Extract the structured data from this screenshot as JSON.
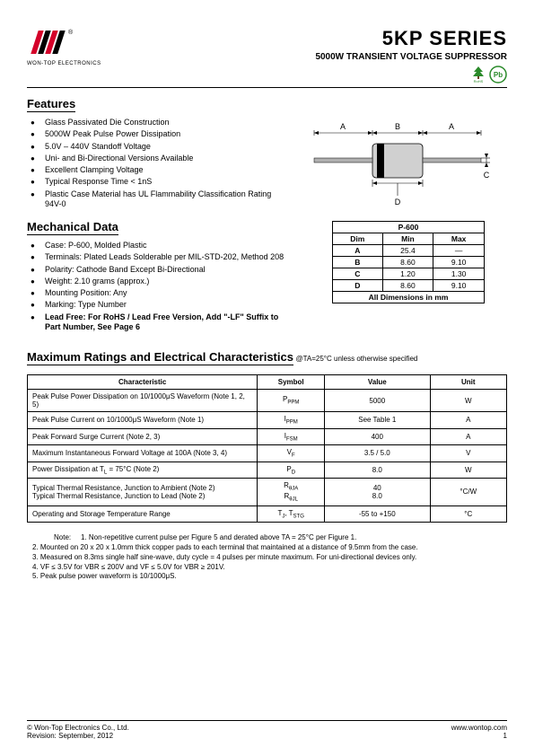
{
  "header": {
    "logo_caption": "WON-TOP ELECTRONICS",
    "series_title": "5KP SERIES",
    "subtitle": "5000W TRANSIENT VOLTAGE SUPPRESSOR",
    "rohs_label": "RoHS",
    "pb_label": "Pb"
  },
  "features": {
    "title": "Features",
    "items": [
      {
        "text": "Glass Passivated Die Construction",
        "bold": false
      },
      {
        "text": "5000W Peak Pulse Power Dissipation",
        "bold": false
      },
      {
        "text": "5.0V – 440V Standoff Voltage",
        "bold": false
      },
      {
        "text": "Uni- and Bi-Directional Versions Available",
        "bold": false
      },
      {
        "text": "Excellent Clamping Voltage",
        "bold": false
      },
      {
        "text": "Typical Response Time < 1nS",
        "bold": false
      },
      {
        "text": "Plastic Case Material has UL Flammability Classification Rating 94V-0",
        "bold": false
      }
    ]
  },
  "mechanical": {
    "title": "Mechanical Data",
    "items": [
      {
        "text": "Case: P-600, Molded Plastic",
        "bold": false
      },
      {
        "text": "Terminals: Plated Leads Solderable per MIL-STD-202, Method 208",
        "bold": false
      },
      {
        "text": "Polarity: Cathode Band Except Bi-Directional",
        "bold": false
      },
      {
        "text": "Weight: 2.10 grams (approx.)",
        "bold": false
      },
      {
        "text": "Mounting Position: Any",
        "bold": false
      },
      {
        "text": "Marking: Type Number",
        "bold": false
      },
      {
        "text": "Lead Free: For RoHS / Lead Free Version, Add \"-LF\" Suffix to Part Number, See Page 6",
        "bold": true
      }
    ]
  },
  "dim_table": {
    "package": "P-600",
    "headers": [
      "Dim",
      "Min",
      "Max"
    ],
    "rows": [
      [
        "A",
        "25.4",
        "—"
      ],
      [
        "B",
        "8.60",
        "9.10"
      ],
      [
        "C",
        "1.20",
        "1.30"
      ],
      [
        "D",
        "8.60",
        "9.10"
      ]
    ],
    "caption": "All Dimensions in mm"
  },
  "diagram": {
    "labels": {
      "A": "A",
      "B": "B",
      "C": "C",
      "D": "D"
    },
    "body_color": "#d0d0d0",
    "band_color": "#000000",
    "lead_color": "#b0b0b0"
  },
  "ratings": {
    "title": "Maximum Ratings and Electrical Characteristics",
    "condition": "@TA=25°C unless otherwise specified",
    "headers": [
      "Characteristic",
      "Symbol",
      "Value",
      "Unit"
    ],
    "rows": [
      {
        "char": "Peak Pulse Power Dissipation on 10/1000μS Waveform (Note 1, 2, 5)",
        "sym": "P<span class='sub'>PPM</span>",
        "val": "5000",
        "unit": "W"
      },
      {
        "char": "Peak Pulse Current on 10/1000μS Waveform (Note 1)",
        "sym": "I<span class='sub'>PPM</span>",
        "val": "See Table 1",
        "unit": "A"
      },
      {
        "char": "Peak Forward Surge Current (Note 2, 3)",
        "sym": "I<span class='sub'>FSM</span>",
        "val": "400",
        "unit": "A"
      },
      {
        "char": "Maximum Instantaneous Forward Voltage at 100A (Note 3, 4)",
        "sym": "V<span class='sub'>F</span>",
        "val": "3.5 / 5.0",
        "unit": "V"
      },
      {
        "char": "Power Dissipation at T<span class='sub'>L</span> = 75°C (Note 2)",
        "sym": "P<span class='sub'>D</span>",
        "val": "8.0",
        "unit": "W"
      },
      {
        "char": "Typical Thermal Resistance, Junction to Ambient (Note 2)<br>Typical Thermal Resistance, Junction to Lead (Note 2)",
        "sym": "R<span class='sub'>θJA</span><br>R<span class='sub'>θJL</span>",
        "val": "40<br>8.0",
        "unit": "°C/W"
      },
      {
        "char": "Operating and Storage Temperature Range",
        "sym": "T<span class='sub'>J</span>, T<span class='sub'>STG</span>",
        "val": "-55 to +150",
        "unit": "°C"
      }
    ]
  },
  "notes": {
    "label": "Note:",
    "items": [
      "1. Non-repetitive current pulse per Figure 5 and derated above TA = 25°C per Figure 1.",
      "2. Mounted on 20 x 20 x 1.0mm thick copper pads to each terminal that maintained at a distance of 9.5mm from the case.",
      "3. Measured on 8.3ms single half sine-wave, duty cycle = 4 pulses per minute maximum. For uni-directional devices only.",
      "4. VF ≤ 3.5V for VBR ≤ 200V and VF ≤ 5.0V for VBR ≥ 201V.",
      "5. Peak pulse power waveform is 10/1000μS."
    ]
  },
  "footer": {
    "copyright": "© Won-Top Electronics Co., Ltd.",
    "revision": "Revision: September, 2012",
    "url": "www.wontop.com",
    "page": "1"
  }
}
